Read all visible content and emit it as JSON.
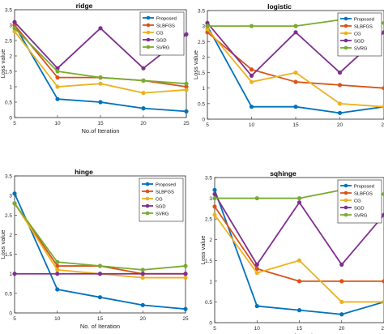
{
  "chart_data": [
    {
      "type": "line",
      "title": "ridge",
      "xlabel": "No.of Iteration",
      "ylabel": "Loss value",
      "x": [
        5,
        10,
        15,
        20,
        25
      ],
      "xlim": [
        5,
        25
      ],
      "ylim": [
        0,
        3.5
      ],
      "xticks": [
        "5",
        "10",
        "15",
        "20",
        "25"
      ],
      "yticks": [
        "0",
        "0.5",
        "1",
        "1.5",
        "2",
        "2.5",
        "3",
        "3.5"
      ],
      "grid": false,
      "legend_position": "top-right",
      "series": [
        {
          "name": "Proposed",
          "color": "#0072BD",
          "values": [
            3.0,
            0.6,
            0.5,
            0.3,
            0.2
          ]
        },
        {
          "name": "SLBFGS",
          "color": "#D95319",
          "values": [
            3.0,
            1.3,
            1.3,
            1.2,
            1.0
          ]
        },
        {
          "name": "CG",
          "color": "#EDB120",
          "values": [
            2.8,
            1.0,
            1.1,
            0.8,
            0.9
          ]
        },
        {
          "name": "SGD",
          "color": "#7E2F8E",
          "values": [
            3.1,
            1.6,
            2.9,
            1.6,
            2.7
          ]
        },
        {
          "name": "SVRG",
          "color": "#77AC30",
          "values": [
            2.9,
            1.5,
            1.3,
            1.2,
            1.1
          ]
        }
      ]
    },
    {
      "type": "line",
      "title": "logistic",
      "xlabel": "",
      "ylabel": "Loss value",
      "x": [
        5,
        10,
        15,
        20,
        25
      ],
      "xlim": [
        5,
        25
      ],
      "ylim": [
        0,
        3.5
      ],
      "xticks": [
        "5",
        "10",
        "15",
        "20",
        "25"
      ],
      "yticks": [
        "0",
        "0.5",
        "1",
        "1.5",
        "2",
        "2.5",
        "3",
        "3.5"
      ],
      "grid": false,
      "legend_position": "top-right",
      "series": [
        {
          "name": "Proposed",
          "color": "#0072BD",
          "values": [
            3.0,
            0.4,
            0.4,
            0.2,
            0.4
          ]
        },
        {
          "name": "SLBFGS",
          "color": "#D95319",
          "values": [
            2.8,
            1.6,
            1.2,
            1.1,
            1.0
          ]
        },
        {
          "name": "CG",
          "color": "#EDB120",
          "values": [
            2.9,
            1.2,
            1.5,
            0.5,
            0.4
          ]
        },
        {
          "name": "SGD",
          "color": "#7E2F8E",
          "values": [
            3.1,
            1.4,
            2.8,
            1.5,
            2.8
          ]
        },
        {
          "name": "SVRG",
          "color": "#77AC30",
          "values": [
            3.0,
            3.0,
            3.0,
            3.2,
            3.1
          ]
        }
      ]
    },
    {
      "type": "line",
      "title": "hinge",
      "xlabel": "No. of Iteration",
      "ylabel": "Loss value",
      "x": [
        5,
        10,
        15,
        20,
        25
      ],
      "xlim": [
        5,
        25
      ],
      "ylim": [
        0,
        3.5
      ],
      "xticks": [
        "5",
        "10",
        "15",
        "20",
        "25"
      ],
      "yticks": [
        "0",
        "0.5",
        "1",
        "1.5",
        "2",
        "2.5",
        "3",
        "3.5"
      ],
      "grid": false,
      "legend_position": "top-right",
      "series": [
        {
          "name": "Proposed",
          "color": "#0072BD",
          "values": [
            3.05,
            0.6,
            0.4,
            0.2,
            0.1
          ]
        },
        {
          "name": "SLBFGS",
          "color": "#D95319",
          "values": [
            2.8,
            1.2,
            1.2,
            1.0,
            1.0
          ]
        },
        {
          "name": "CG",
          "color": "#EDB120",
          "values": [
            2.8,
            1.1,
            1.0,
            0.9,
            0.9
          ]
        },
        {
          "name": "SGD",
          "color": "#7E2F8E",
          "values": [
            1.0,
            1.0,
            1.0,
            1.0,
            1.0
          ]
        },
        {
          "name": "SVRG",
          "color": "#77AC30",
          "values": [
            2.8,
            1.3,
            1.2,
            1.1,
            1.2
          ]
        }
      ]
    },
    {
      "type": "line",
      "title": "sqhinge",
      "xlabel": "No. of Iteration",
      "ylabel": "Loss value",
      "x": [
        5,
        10,
        15,
        20,
        25
      ],
      "xlim": [
        5,
        25
      ],
      "ylim": [
        0,
        3.5
      ],
      "xticks": [
        "5",
        "10",
        "15",
        "20",
        "25"
      ],
      "yticks": [
        "0",
        "0.5",
        "1",
        "1.5",
        "2",
        "2.5",
        "3",
        "3.5"
      ],
      "grid": false,
      "legend_position": "top-right",
      "series": [
        {
          "name": "Proposed",
          "color": "#0072BD",
          "values": [
            3.2,
            0.4,
            0.3,
            0.2,
            0.5
          ]
        },
        {
          "name": "SLBFGS",
          "color": "#D95319",
          "values": [
            2.8,
            1.3,
            1.0,
            1.0,
            1.0
          ]
        },
        {
          "name": "CG",
          "color": "#EDB120",
          "values": [
            2.6,
            1.2,
            1.5,
            0.5,
            0.5
          ]
        },
        {
          "name": "SGD",
          "color": "#7E2F8E",
          "values": [
            3.1,
            1.4,
            2.9,
            1.4,
            2.6
          ]
        },
        {
          "name": "SVRG",
          "color": "#77AC30",
          "values": [
            3.0,
            3.0,
            3.0,
            3.2,
            3.1
          ]
        }
      ]
    }
  ]
}
